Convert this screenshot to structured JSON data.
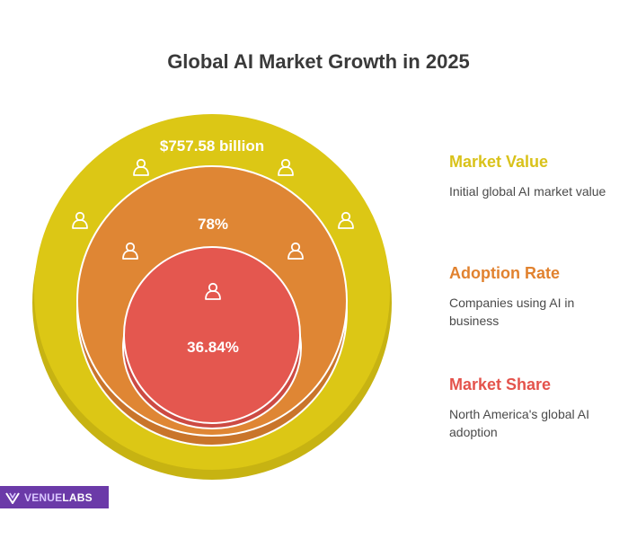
{
  "title": "Global AI Market Growth in 2025",
  "rings": [
    {
      "value_label": "$757.58 billion",
      "color": "#dcc715",
      "shadow": "#c7b312"
    },
    {
      "value_label": "78%",
      "color": "#df8634",
      "shadow": "#c9752b"
    },
    {
      "value_label": "36.84%",
      "color": "#e4574f",
      "shadow": "#cc4a43"
    }
  ],
  "legend": [
    {
      "title": "Market Value",
      "description": "Initial global AI market value",
      "color": "#d9c21a"
    },
    {
      "title": "Adoption Rate",
      "description": "Companies using AI in business",
      "color": "#e1822f"
    },
    {
      "title": "Market Share",
      "description": "North America's global AI adoption",
      "color": "#e4534c"
    }
  ],
  "icons": [
    "user-icon"
  ],
  "logo": {
    "part1": "VENUE",
    "part2": "LABS"
  }
}
